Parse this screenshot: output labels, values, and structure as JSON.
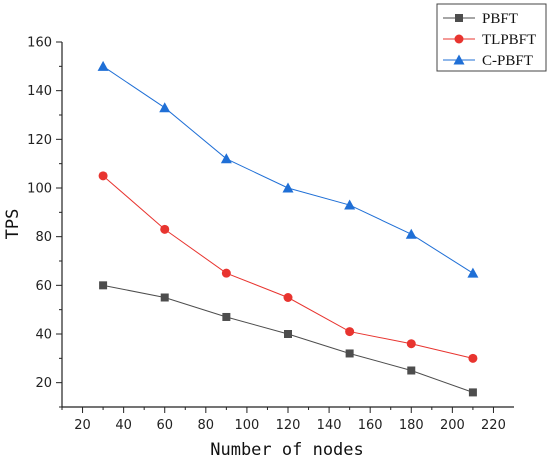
{
  "chart_data": {
    "type": "line",
    "title": "",
    "xlabel": "Number of nodes",
    "ylabel": "TPS",
    "xlim": [
      10,
      230
    ],
    "ylim": [
      10,
      160
    ],
    "xticks": [
      20,
      40,
      60,
      80,
      100,
      120,
      140,
      160,
      180,
      200,
      220
    ],
    "yticks": [
      20,
      40,
      60,
      80,
      100,
      120,
      140,
      160
    ],
    "x": [
      30,
      60,
      90,
      120,
      150,
      180,
      210
    ],
    "grid": false,
    "legend_position": "top-right",
    "series": [
      {
        "name": "PBFT",
        "color": "#4d4d4d",
        "marker": "square",
        "values": [
          60,
          55,
          47,
          40,
          32,
          25,
          16
        ]
      },
      {
        "name": "TLPBFT",
        "color": "#e8342f",
        "marker": "circle",
        "values": [
          105,
          83,
          65,
          55,
          41,
          36,
          30
        ]
      },
      {
        "name": "C-PBFT",
        "color": "#1f6fd6",
        "marker": "triangle",
        "values": [
          150,
          133,
          112,
          100,
          93,
          81,
          65
        ]
      }
    ]
  }
}
